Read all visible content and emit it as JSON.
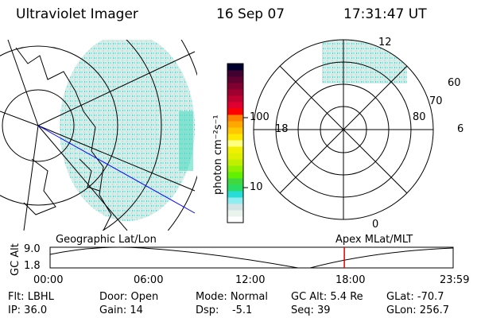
{
  "header": {
    "instrument": "Ultraviolet Imager",
    "date": "16 Sep 07",
    "time": "17:31:47 UT"
  },
  "colorbar": {
    "label": "photon cm⁻²s⁻¹",
    "ticks": [
      "100",
      "10"
    ],
    "colors": [
      "#ffffff",
      "#e8f4ec",
      "#d4e4e4",
      "#90ecf0",
      "#28dcd8",
      "#28dc64",
      "#40d840",
      "#60f000",
      "#90f000",
      "#c0f000",
      "#e0f000",
      "#f0f000",
      "#ffff80",
      "#ffe800",
      "#ffc800",
      "#ffa800",
      "#ff8000",
      "#ff0000",
      "#e00030",
      "#c00030",
      "#a00030",
      "#800030",
      "#600030",
      "#400030",
      "#000030"
    ]
  },
  "polar": {
    "labels": {
      "top": "12",
      "bottom": "0",
      "left": "18",
      "right": "6",
      "r60": "60",
      "r70": "70",
      "r80": "80"
    }
  },
  "timeline": {
    "left_title": "Geographic Lat/Lon",
    "right_title": "Apex MLat/MLT",
    "ylabel": "GC Alt",
    "yticks": [
      "9.0",
      "1.8"
    ],
    "xticks": [
      "00:00",
      "06:00",
      "12:00",
      "18:00",
      "23:59"
    ],
    "current_time_fraction": 0.73,
    "marker_color": "#e00000"
  },
  "status": {
    "flt": "Flt: LBHL",
    "ip": "IP: 36.0",
    "door": "Door: Open",
    "gain": "Gain: 14",
    "mode": "Mode: Normal",
    "dsp": "Dsp:    -5.1",
    "gcalt": "GC Alt: 5.4 Re",
    "seq": "Seq: 39",
    "glat": "GLat: -70.7",
    "glon": "GLon: 256.7"
  }
}
